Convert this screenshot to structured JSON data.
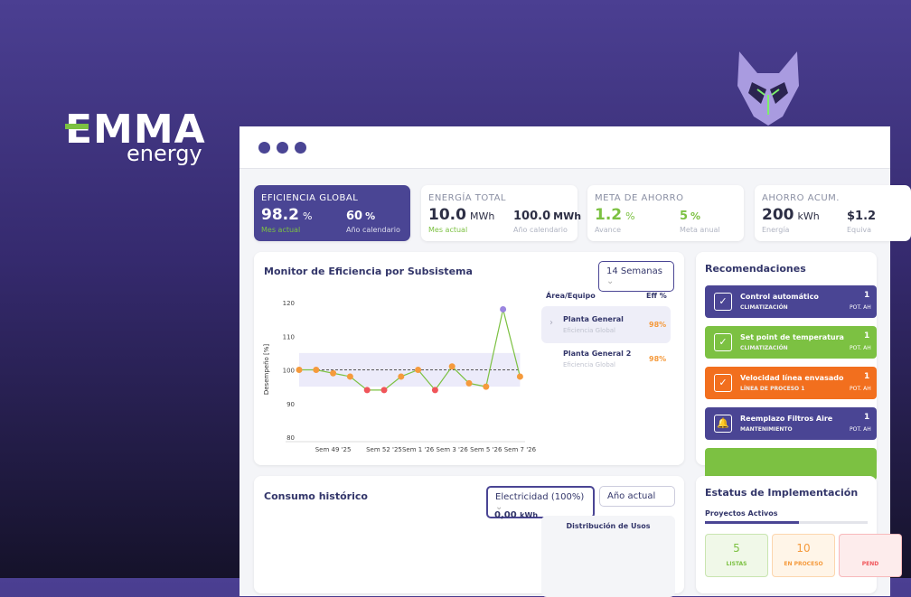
{
  "brand": {
    "name": "EMMA",
    "sub": "energy"
  },
  "kpis": [
    {
      "title": "EFICIENCIA GLOBAL",
      "v1": "98.2",
      "u1": "%",
      "l1": "Mes actual",
      "v2": "60",
      "u2": "%",
      "l2": "Año calendario"
    },
    {
      "title": "ENERGÍA TOTAL",
      "v1": "10.0",
      "u1": "MWh",
      "l1": "Mes actual",
      "v2": "100.0",
      "u2": "MWh",
      "l2": "Año calendario"
    },
    {
      "title": "META DE AHORRO",
      "v1": "1.2",
      "u1": "%",
      "l1": "Avance",
      "v2": "5",
      "u2": "%",
      "l2": "Meta anual"
    },
    {
      "title": "AHORRO ACUM.",
      "v1": "200",
      "u1": "kWh",
      "l1": "Energía",
      "v2": "$1.2",
      "u2": "",
      "l2": "Equiva"
    }
  ],
  "monitor": {
    "title": "Monitor de Eficiencia por Subsistema",
    "select": "14 Semanas",
    "headers": [
      "Área/Equipo",
      "Eff %"
    ],
    "rows": [
      {
        "name": "Planta General",
        "sub": "Eficiencia Global",
        "eff": "98%"
      },
      {
        "name": "Planta General 2",
        "sub": "Eficiencia Global",
        "eff": "98%"
      }
    ]
  },
  "chart_data": {
    "type": "line",
    "ylabel": "Desempeño [%]",
    "categories": [
      null,
      null,
      "Sem 49 '25",
      null,
      null,
      "Sem 52 '25",
      null,
      "Sem 1 '26",
      null,
      "Sem 3 '26",
      null,
      "Sem 5 '26",
      null,
      "Sem 7 '26"
    ],
    "series": [
      {
        "color": "#7cc142",
        "values": [
          100,
          100,
          99,
          98,
          94,
          94,
          98,
          100,
          94,
          101,
          96,
          95,
          118,
          98
        ],
        "point_colors": [
          "#f59a3c",
          "#f59a3c",
          "#f59a3c",
          "#f59a3c",
          "#f0555a",
          "#f0555a",
          "#f59a3c",
          "#f59a3c",
          "#f0555a",
          "#f59a3c",
          "#f59a3c",
          "#f59a3c",
          "#9b86e0",
          "#f59a3c"
        ]
      }
    ],
    "reference": 100,
    "band": [
      95,
      105
    ],
    "ylim": [
      80,
      120
    ],
    "yticks": [
      80,
      90,
      100,
      110,
      120
    ],
    "grid": false
  },
  "recs": {
    "title": "Recomendaciones",
    "items": [
      {
        "title": "Control automático",
        "sub": "CLIMATIZACIÓN",
        "value": "1",
        "unit": "POT. AH",
        "color": "#4a4594"
      },
      {
        "title": "Set point de temperatura",
        "sub": "CLIMATIZACIÓN",
        "value": "1",
        "unit": "POT. AH",
        "color": "#7cc142"
      },
      {
        "title": "Velocidad línea envasado",
        "sub": "LÍNEA DE PROCESO 1",
        "value": "1",
        "unit": "POT. AH",
        "color": "#f26f1e"
      },
      {
        "title": "Reemplazo Filtros Aire",
        "sub": "MANTENIMIENTO",
        "value": "1",
        "unit": "POT. AH",
        "color": "#4a4594"
      }
    ]
  },
  "consumo": {
    "title": "Consumo histórico",
    "select1": "Electricidad (100%)",
    "select2": "Año actual",
    "total": "0,00",
    "unit": "kWh",
    "dist": "Distribución de Usos"
  },
  "estatus": {
    "title": "Estatus de Implementación",
    "sub": "Proyectos Activos",
    "boxes": [
      {
        "value": "5",
        "label": "LISTAS"
      },
      {
        "value": "10",
        "label": "EN PROCESO"
      },
      {
        "value": "",
        "label": "PEND"
      }
    ]
  }
}
